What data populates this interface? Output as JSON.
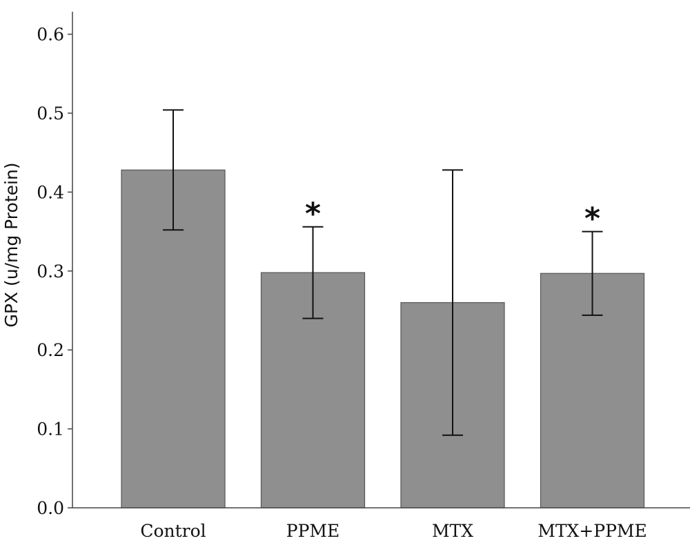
{
  "chart_data": {
    "type": "bar",
    "title": "",
    "xlabel": "",
    "ylabel": "GPX (u/mg Protein)",
    "categories": [
      "Control",
      "PPME",
      "MTX",
      "MTX+PPME"
    ],
    "values": [
      0.428,
      0.298,
      0.26,
      0.297
    ],
    "error_low": [
      0.352,
      0.24,
      0.092,
      0.244
    ],
    "error_high": [
      0.504,
      0.356,
      0.428,
      0.35
    ],
    "significance": [
      "",
      "*",
      "",
      "*"
    ],
    "ylim": [
      0,
      0.62
    ],
    "yticks": [
      0.0,
      0.1,
      0.2,
      0.3,
      0.4,
      0.5,
      0.6
    ],
    "ytick_labels": [
      "0.0",
      "0.1",
      "0.2",
      "0.3",
      "0.4",
      "0.5",
      "0.6"
    ],
    "grid": false,
    "bar_color": "#8f8f8f",
    "bar_edge_color": "#555555",
    "axis_color": "#444444"
  }
}
